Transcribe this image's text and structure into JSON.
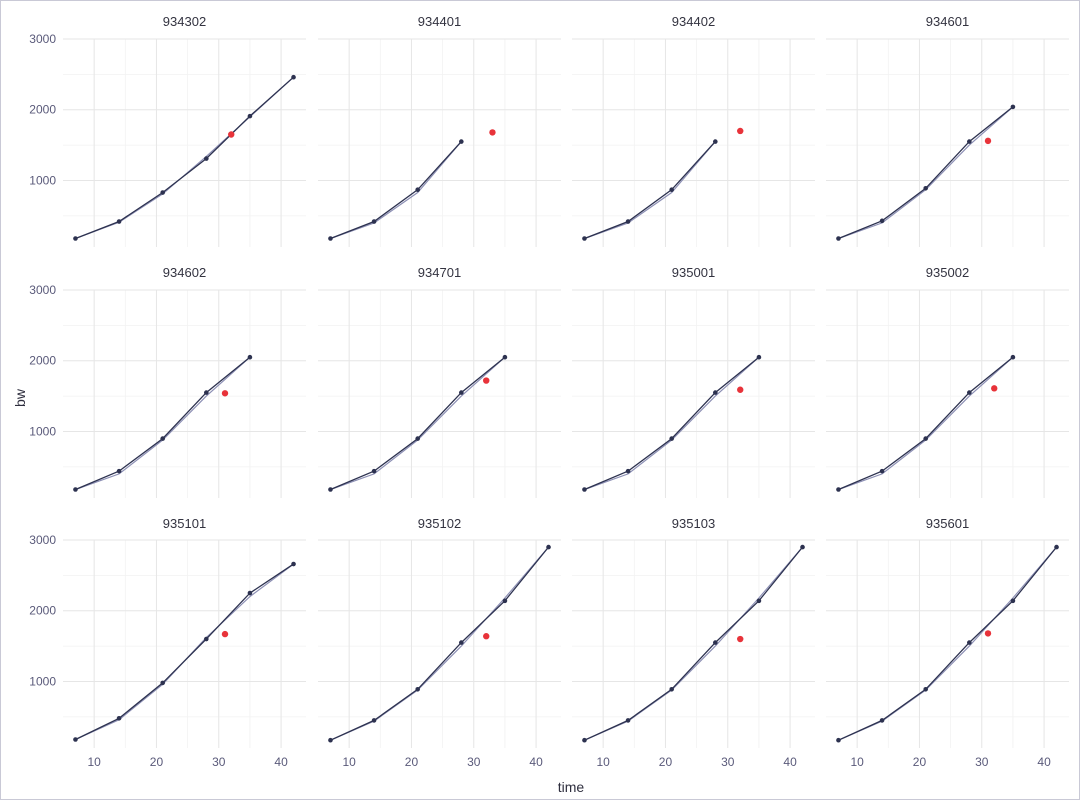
{
  "chart_data": {
    "type": "line",
    "xlabel": "time",
    "ylabel": "bw",
    "xlim": [
      5,
      44
    ],
    "ylim": [
      60,
      3000
    ],
    "x_ticks": [
      10,
      20,
      30,
      40
    ],
    "y_ticks": [
      1000,
      2000,
      3000
    ],
    "grid": true,
    "panels": [
      {
        "id": "934302",
        "observed": {
          "x": [
            7,
            14,
            21,
            28,
            35,
            42
          ],
          "y": [
            180,
            420,
            830,
            1310,
            1910,
            2460
          ]
        },
        "fitted": {
          "x": [
            7,
            14,
            21,
            28,
            35,
            42
          ],
          "y": [
            180,
            410,
            810,
            1340,
            1900,
            2460
          ]
        },
        "highlight": {
          "x": 32,
          "y": 1650
        }
      },
      {
        "id": "934401",
        "observed": {
          "x": [
            7,
            14,
            21,
            28
          ],
          "y": [
            180,
            420,
            870,
            1550
          ]
        },
        "fitted": {
          "x": [
            7,
            14,
            21,
            28
          ],
          "y": [
            180,
            400,
            830,
            1550
          ]
        },
        "highlight": {
          "x": 33,
          "y": 1680
        }
      },
      {
        "id": "934402",
        "observed": {
          "x": [
            7,
            14,
            21,
            28
          ],
          "y": [
            180,
            420,
            870,
            1550
          ]
        },
        "fitted": {
          "x": [
            7,
            14,
            21,
            28
          ],
          "y": [
            180,
            400,
            830,
            1550
          ]
        },
        "highlight": {
          "x": 32,
          "y": 1700
        }
      },
      {
        "id": "934601",
        "observed": {
          "x": [
            7,
            14,
            21,
            28,
            35
          ],
          "y": [
            180,
            430,
            890,
            1550,
            2040
          ]
        },
        "fitted": {
          "x": [
            7,
            14,
            21,
            28,
            35
          ],
          "y": [
            180,
            400,
            870,
            1500,
            2040
          ]
        },
        "highlight": {
          "x": 31,
          "y": 1560
        }
      },
      {
        "id": "934602",
        "observed": {
          "x": [
            7,
            14,
            21,
            28,
            35
          ],
          "y": [
            180,
            440,
            900,
            1550,
            2050
          ]
        },
        "fitted": {
          "x": [
            7,
            14,
            21,
            28,
            35
          ],
          "y": [
            180,
            400,
            880,
            1500,
            2050
          ]
        },
        "highlight": {
          "x": 31,
          "y": 1540
        }
      },
      {
        "id": "934701",
        "observed": {
          "x": [
            7,
            14,
            21,
            28,
            35
          ],
          "y": [
            180,
            440,
            900,
            1550,
            2050
          ]
        },
        "fitted": {
          "x": [
            7,
            14,
            21,
            28,
            35
          ],
          "y": [
            180,
            400,
            880,
            1500,
            2050
          ]
        },
        "highlight": {
          "x": 32,
          "y": 1720
        }
      },
      {
        "id": "935001",
        "observed": {
          "x": [
            7,
            14,
            21,
            28,
            35
          ],
          "y": [
            180,
            440,
            900,
            1550,
            2050
          ]
        },
        "fitted": {
          "x": [
            7,
            14,
            21,
            28,
            35
          ],
          "y": [
            180,
            400,
            880,
            1500,
            2050
          ]
        },
        "highlight": {
          "x": 32,
          "y": 1590
        }
      },
      {
        "id": "935002",
        "observed": {
          "x": [
            7,
            14,
            21,
            28,
            35
          ],
          "y": [
            180,
            440,
            900,
            1550,
            2050
          ]
        },
        "fitted": {
          "x": [
            7,
            14,
            21,
            28,
            35
          ],
          "y": [
            180,
            400,
            880,
            1500,
            2050
          ]
        },
        "highlight": {
          "x": 32,
          "y": 1610
        }
      },
      {
        "id": "935101",
        "observed": {
          "x": [
            7,
            14,
            21,
            28,
            35,
            42
          ],
          "y": [
            180,
            480,
            980,
            1600,
            2250,
            2660
          ]
        },
        "fitted": {
          "x": [
            7,
            14,
            21,
            28,
            35,
            42
          ],
          "y": [
            180,
            460,
            960,
            1620,
            2200,
            2660
          ]
        },
        "highlight": {
          "x": 31,
          "y": 1670
        }
      },
      {
        "id": "935102",
        "observed": {
          "x": [
            7,
            14,
            21,
            28,
            35,
            42
          ],
          "y": [
            170,
            450,
            890,
            1550,
            2140,
            2900
          ]
        },
        "fitted": {
          "x": [
            7,
            14,
            21,
            28,
            35,
            42
          ],
          "y": [
            170,
            440,
            880,
            1500,
            2180,
            2900
          ]
        },
        "highlight": {
          "x": 32,
          "y": 1640
        }
      },
      {
        "id": "935103",
        "observed": {
          "x": [
            7,
            14,
            21,
            28,
            35,
            42
          ],
          "y": [
            170,
            450,
            890,
            1550,
            2140,
            2900
          ]
        },
        "fitted": {
          "x": [
            7,
            14,
            21,
            28,
            35,
            42
          ],
          "y": [
            170,
            440,
            880,
            1500,
            2180,
            2900
          ]
        },
        "highlight": {
          "x": 32,
          "y": 1600
        }
      },
      {
        "id": "935601",
        "observed": {
          "x": [
            7,
            14,
            21,
            28,
            35,
            42
          ],
          "y": [
            170,
            450,
            890,
            1550,
            2140,
            2900
          ]
        },
        "fitted": {
          "x": [
            7,
            14,
            21,
            28,
            35,
            42
          ],
          "y": [
            170,
            440,
            880,
            1500,
            2180,
            2900
          ]
        },
        "highlight": {
          "x": 31,
          "y": 1680
        }
      }
    ],
    "colors": {
      "observed": "#2d3250",
      "fitted": "#8c8fb4",
      "highlight": "#e8333a",
      "grid": "#e6e6e6"
    }
  }
}
